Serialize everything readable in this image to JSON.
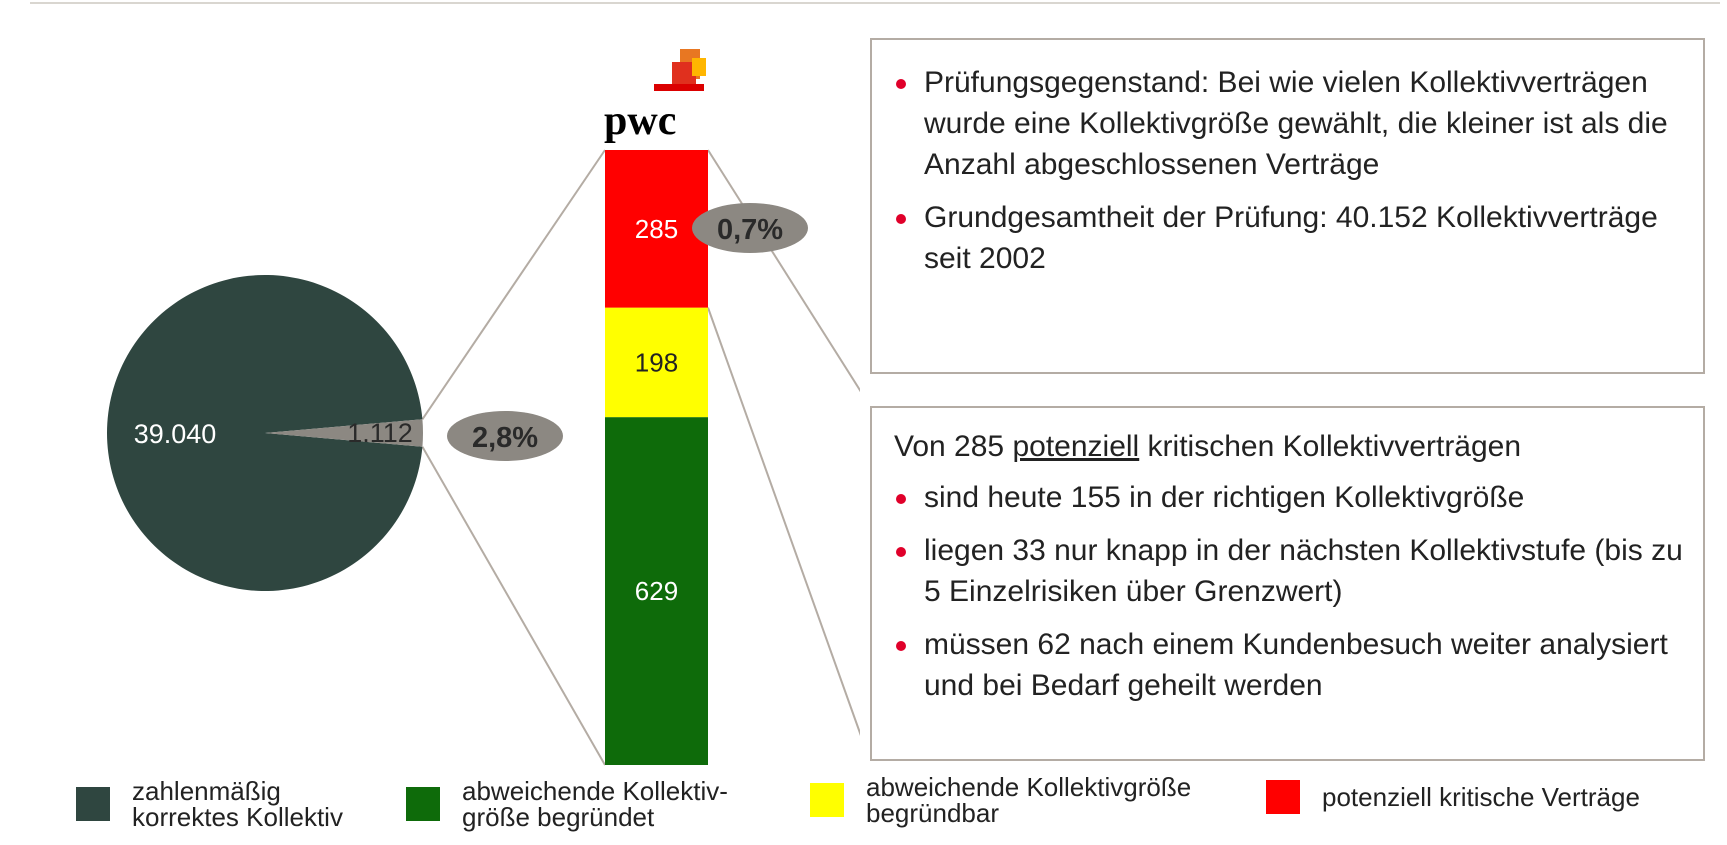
{
  "chart_data": {
    "type": "pie",
    "pie": {
      "slices": [
        {
          "label": "39.040",
          "value": 39040,
          "color": "#2f4640"
        },
        {
          "label": "1.112",
          "value": 1112,
          "color": "#8c8882"
        }
      ],
      "callout": "2,8%"
    },
    "stacked_bar": {
      "segments": [
        {
          "label": "629",
          "value": 629,
          "color": "#0e6b0a"
        },
        {
          "label": "198",
          "value": 198,
          "color": "#ffff00"
        },
        {
          "label": "285",
          "value": 285,
          "color": "#ff0000"
        }
      ],
      "callout": "0,7%"
    },
    "legend": [
      {
        "text": "zahlenmäßig korrektes Kollektiv",
        "lines": [
          "zahlenmäßig",
          "korrektes Kollektiv"
        ],
        "color": "#2f4640"
      },
      {
        "text": "abweichende Kollektiv-größe begründet",
        "lines": [
          "abweichende Kollektiv-",
          "größe begründet"
        ],
        "color": "#0e6b0a"
      },
      {
        "text": "abweichende Kollektivgröße begründbar",
        "lines": [
          "abweichende Kollektivgröße",
          "begründbar"
        ],
        "color": "#ffff00"
      },
      {
        "text": "potenziell kritische Verträge",
        "lines": [
          "potenziell kritische Verträge"
        ],
        "color": "#ff0000"
      }
    ]
  },
  "logo": {
    "text": "pwc"
  },
  "panel_top": {
    "bullets": [
      "Prüfungsgegenstand: Bei wie vielen Kollektivverträgen wurde eine Kollektivgröße gewählt, die kleiner ist als die Anzahl abgeschlossenen Verträge",
      "Grundgesamtheit der Prüfung: 40.152 Kollektivverträge seit 2002"
    ]
  },
  "panel_bottom": {
    "intro_prefix": "Von 285 ",
    "intro_underlined": "potenziell",
    "intro_suffix": " kritischen Kollektivverträgen",
    "bullets": [
      "sind heute 155 in der richtigen Kollektivgröße",
      "liegen 33 nur knapp in der nächsten Kollektivstufe (bis zu 5 Einzelrisiken über Grenzwert)",
      "müssen 62 nach einem Kundenbesuch weiter analysiert und bei Bedarf geheilt werden"
    ]
  },
  "colors": {
    "accent_bullet": "#e0002a",
    "callout_fill": "#8c8882",
    "connector": "#b4aca4"
  }
}
